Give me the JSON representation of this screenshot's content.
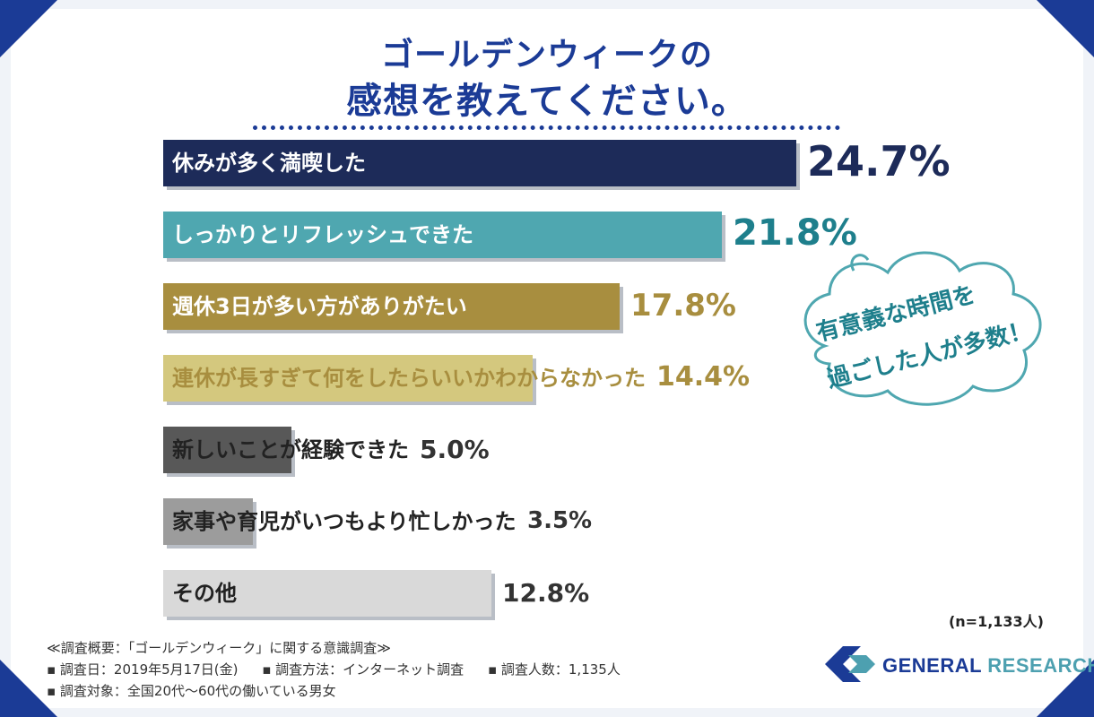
{
  "title": {
    "line1": "ゴールデンウィークの",
    "line2": "感想を教えてください。"
  },
  "colors": {
    "brand": "#1b3b96",
    "teal": "#1e7f8c",
    "bars": [
      "#1d2b59",
      "#4fa7b0",
      "#a88e3f",
      "#d4c87e",
      "#585858",
      "#9c9c9c",
      "#d9d9d9"
    ],
    "labels": [
      "#ffffff",
      "#ffffff",
      "#ffffff",
      "#a88e3f",
      "#222222",
      "#222222",
      "#222222"
    ],
    "pcts": [
      "#1d2b59",
      "#1e7f8c",
      "#a88e3f",
      "#a88e3f",
      "#333333",
      "#333333",
      "#333333"
    ]
  },
  "chart_data": {
    "type": "bar",
    "orientation": "horizontal",
    "title": "ゴールデンウィークの感想を教えてください。",
    "categories": [
      "休みが多く満喫した",
      "しっかりとリフレッシュできた",
      "週休3日が多い方がありがたい",
      "連休が長すぎて何をしたらいいかわからなかった",
      "新しいことが経験できた",
      "家事や育児がいつもより忙しかった",
      "その他"
    ],
    "values": [
      24.7,
      21.8,
      17.8,
      14.4,
      5.0,
      3.5,
      12.8
    ],
    "value_labels": [
      "24.7%",
      "21.8%",
      "17.8%",
      "14.4%",
      "5.0%",
      "3.5%",
      "12.8%"
    ],
    "unit": "%",
    "xlim": [
      0,
      25
    ]
  },
  "callout": {
    "line1": "有意義な時間を",
    "line2": "過ごした人が多数！"
  },
  "sample_note": "(n=1,133人)",
  "footer": {
    "overview": "≪調査概要：「ゴールデンウィーク」に関する意識調査≫",
    "date": "▪ 調査日：2019年5月17日(金)",
    "method": "▪ 調査方法：インターネット調査",
    "count": "▪ 調査人数：1,135人",
    "target": "▪ 調査対象：全国20代〜60代の働いている男女"
  },
  "logo": {
    "word1": "GENERAL",
    "word2": "RESEARCH"
  }
}
